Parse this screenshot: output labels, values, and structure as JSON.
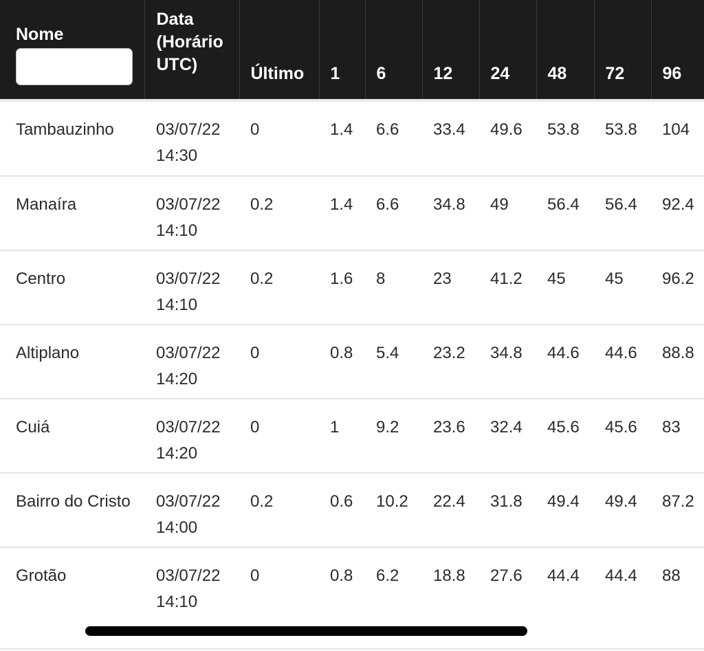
{
  "header": {
    "nome": "Nome",
    "nome_filter_value": "",
    "data": "Data (Horário UTC)",
    "ultimo": "Último",
    "h1": "1",
    "h6": "6",
    "h12": "12",
    "h24": "24",
    "h48": "48",
    "h72": "72",
    "h96": "96"
  },
  "rows": [
    {
      "nome": "Tambauzinho",
      "data": "03/07/22 14:30",
      "ultimo": "0",
      "h1": "1.4",
      "h6": "6.6",
      "h12": "33.4",
      "h24": "49.6",
      "h48": "53.8",
      "h72": "53.8",
      "h96": "104"
    },
    {
      "nome": "Manaíra",
      "data": "03/07/22 14:10",
      "ultimo": "0.2",
      "h1": "1.4",
      "h6": "6.6",
      "h12": "34.8",
      "h24": "49",
      "h48": "56.4",
      "h72": "56.4",
      "h96": "92.4"
    },
    {
      "nome": "Centro",
      "data": "03/07/22 14:10",
      "ultimo": "0.2",
      "h1": "1.6",
      "h6": "8",
      "h12": "23",
      "h24": "41.2",
      "h48": "45",
      "h72": "45",
      "h96": "96.2"
    },
    {
      "nome": "Altiplano",
      "data": "03/07/22 14:20",
      "ultimo": "0",
      "h1": "0.8",
      "h6": "5.4",
      "h12": "23.2",
      "h24": "34.8",
      "h48": "44.6",
      "h72": "44.6",
      "h96": "88.8"
    },
    {
      "nome": "Cuiá",
      "data": "03/07/22 14:20",
      "ultimo": "0",
      "h1": "1",
      "h6": "9.2",
      "h12": "23.6",
      "h24": "32.4",
      "h48": "45.6",
      "h72": "45.6",
      "h96": "83"
    },
    {
      "nome": "Bairro do Cristo",
      "data": "03/07/22 14:00",
      "ultimo": "0.2",
      "h1": "0.6",
      "h6": "10.2",
      "h12": "22.4",
      "h24": "31.8",
      "h48": "49.4",
      "h72": "49.4",
      "h96": "87.2"
    },
    {
      "nome": "Grotão",
      "data": "03/07/22 14:10",
      "ultimo": "0",
      "h1": "0.8",
      "h6": "6.2",
      "h12": "18.8",
      "h24": "27.6",
      "h48": "44.4",
      "h72": "44.4",
      "h96": "88"
    }
  ],
  "colors": {
    "header_bg": "#1c1c1c",
    "header_text": "#ffffff",
    "row_text": "#2b2b2b",
    "row_divider": "#e6e6e6"
  }
}
